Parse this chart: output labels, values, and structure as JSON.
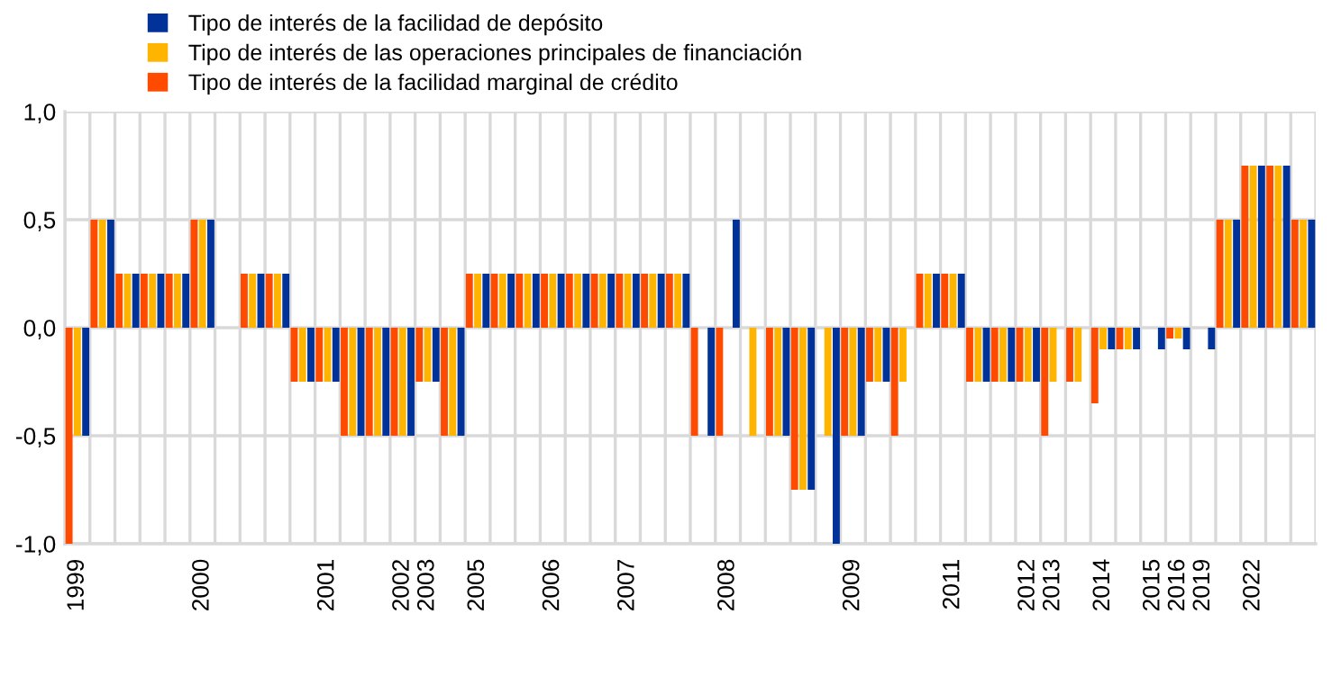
{
  "chart_data": {
    "type": "bar",
    "categories": [
      "1999",
      null,
      null,
      null,
      null,
      "2000",
      null,
      null,
      null,
      null,
      "2001",
      null,
      null,
      "2002",
      "2003",
      null,
      "2005",
      null,
      null,
      "2006",
      null,
      null,
      "2007",
      null,
      null,
      null,
      "2008",
      null,
      null,
      null,
      null,
      "2009",
      null,
      null,
      null,
      "2011",
      null,
      null,
      "2012",
      "2013",
      null,
      "2014",
      null,
      "2015",
      "2016",
      "2019",
      null,
      "2022",
      null,
      null
    ],
    "series": [
      {
        "name": "Tipo de interés de la facilidad marginal de crédito",
        "color": "#ff4b00",
        "values": [
          -1.0,
          0.5,
          0.25,
          0.25,
          0.25,
          0.5,
          0,
          0.25,
          0.25,
          -0.25,
          -0.25,
          -0.5,
          -0.5,
          -0.5,
          -0.25,
          -0.5,
          0.25,
          0.25,
          0.25,
          0.25,
          0.25,
          0.25,
          0.25,
          0.25,
          0.25,
          -0.5,
          -0.5,
          0,
          -0.5,
          -0.75,
          0,
          -0.5,
          -0.25,
          -0.5,
          0.25,
          0.25,
          -0.25,
          -0.25,
          -0.25,
          -0.5,
          -0.25,
          -0.35,
          -0.1,
          0,
          -0.05,
          0,
          0.5,
          0.75,
          0.75,
          0.5
        ]
      },
      {
        "name": "Tipo de interés de las operaciones principales de financiación",
        "color": "#ffb400",
        "values": [
          -0.5,
          0.5,
          0.25,
          0.25,
          0.25,
          0.5,
          0,
          0.25,
          0.25,
          -0.25,
          -0.25,
          -0.5,
          -0.5,
          -0.5,
          -0.25,
          -0.5,
          0.25,
          0.25,
          0.25,
          0.25,
          0.25,
          0.25,
          0.25,
          0.25,
          0.25,
          0,
          0,
          -0.5,
          -0.5,
          -0.75,
          -0.5,
          -0.5,
          -0.25,
          -0.25,
          0.25,
          0.25,
          -0.25,
          -0.25,
          -0.25,
          -0.25,
          -0.25,
          -0.1,
          -0.1,
          0,
          -0.05,
          0,
          0.5,
          0.75,
          0.75,
          0.5
        ]
      },
      {
        "name": "Tipo de interés de la facilidad de depósito",
        "color": "#003299",
        "values": [
          -0.5,
          0.5,
          0.25,
          0.25,
          0.25,
          0.5,
          0,
          0.25,
          0.25,
          -0.25,
          -0.25,
          -0.5,
          -0.5,
          -0.5,
          -0.25,
          -0.5,
          0.25,
          0.25,
          0.25,
          0.25,
          0.25,
          0.25,
          0.25,
          0.25,
          0.25,
          -0.5,
          0.5,
          0,
          -0.5,
          -0.75,
          -1.0,
          -0.5,
          -0.25,
          0,
          0.25,
          0.25,
          -0.25,
          -0.25,
          -0.25,
          0,
          0,
          -0.1,
          -0.1,
          -0.1,
          -0.1,
          -0.1,
          0.5,
          0.75,
          0.75,
          0.5
        ]
      }
    ],
    "ylim": [
      -1.0,
      1.0
    ],
    "yticks": [
      {
        "value": -1.0,
        "label": "-1,0"
      },
      {
        "value": -0.5,
        "label": "-0,5"
      },
      {
        "value": 0.0,
        "label": "0,0"
      },
      {
        "value": 0.5,
        "label": "0,5"
      },
      {
        "value": 1.0,
        "label": "1,0"
      }
    ],
    "grid": true,
    "legend": "top left"
  }
}
